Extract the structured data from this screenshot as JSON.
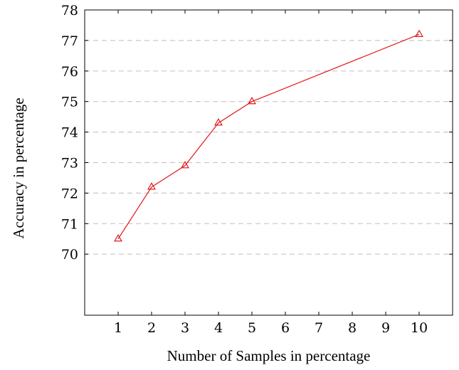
{
  "chart_data": {
    "type": "line",
    "title": "",
    "xlabel": "Number of Samples in percentage",
    "ylabel": "Accuracy in percentage",
    "xlim": [
      0,
      11
    ],
    "ylim": [
      68,
      78
    ],
    "xticks": [
      1,
      2,
      3,
      4,
      5,
      6,
      7,
      8,
      9,
      10
    ],
    "yticks": [
      70,
      71,
      72,
      73,
      74,
      75,
      76,
      77,
      78
    ],
    "grid": "horizontal-dashed",
    "marker": "triangle",
    "color": "#e41a1c",
    "series": [
      {
        "x": [
          1,
          2,
          3,
          4,
          5,
          10
        ],
        "y": [
          70.5,
          72.2,
          72.9,
          74.3,
          75.0,
          77.2
        ]
      }
    ]
  }
}
